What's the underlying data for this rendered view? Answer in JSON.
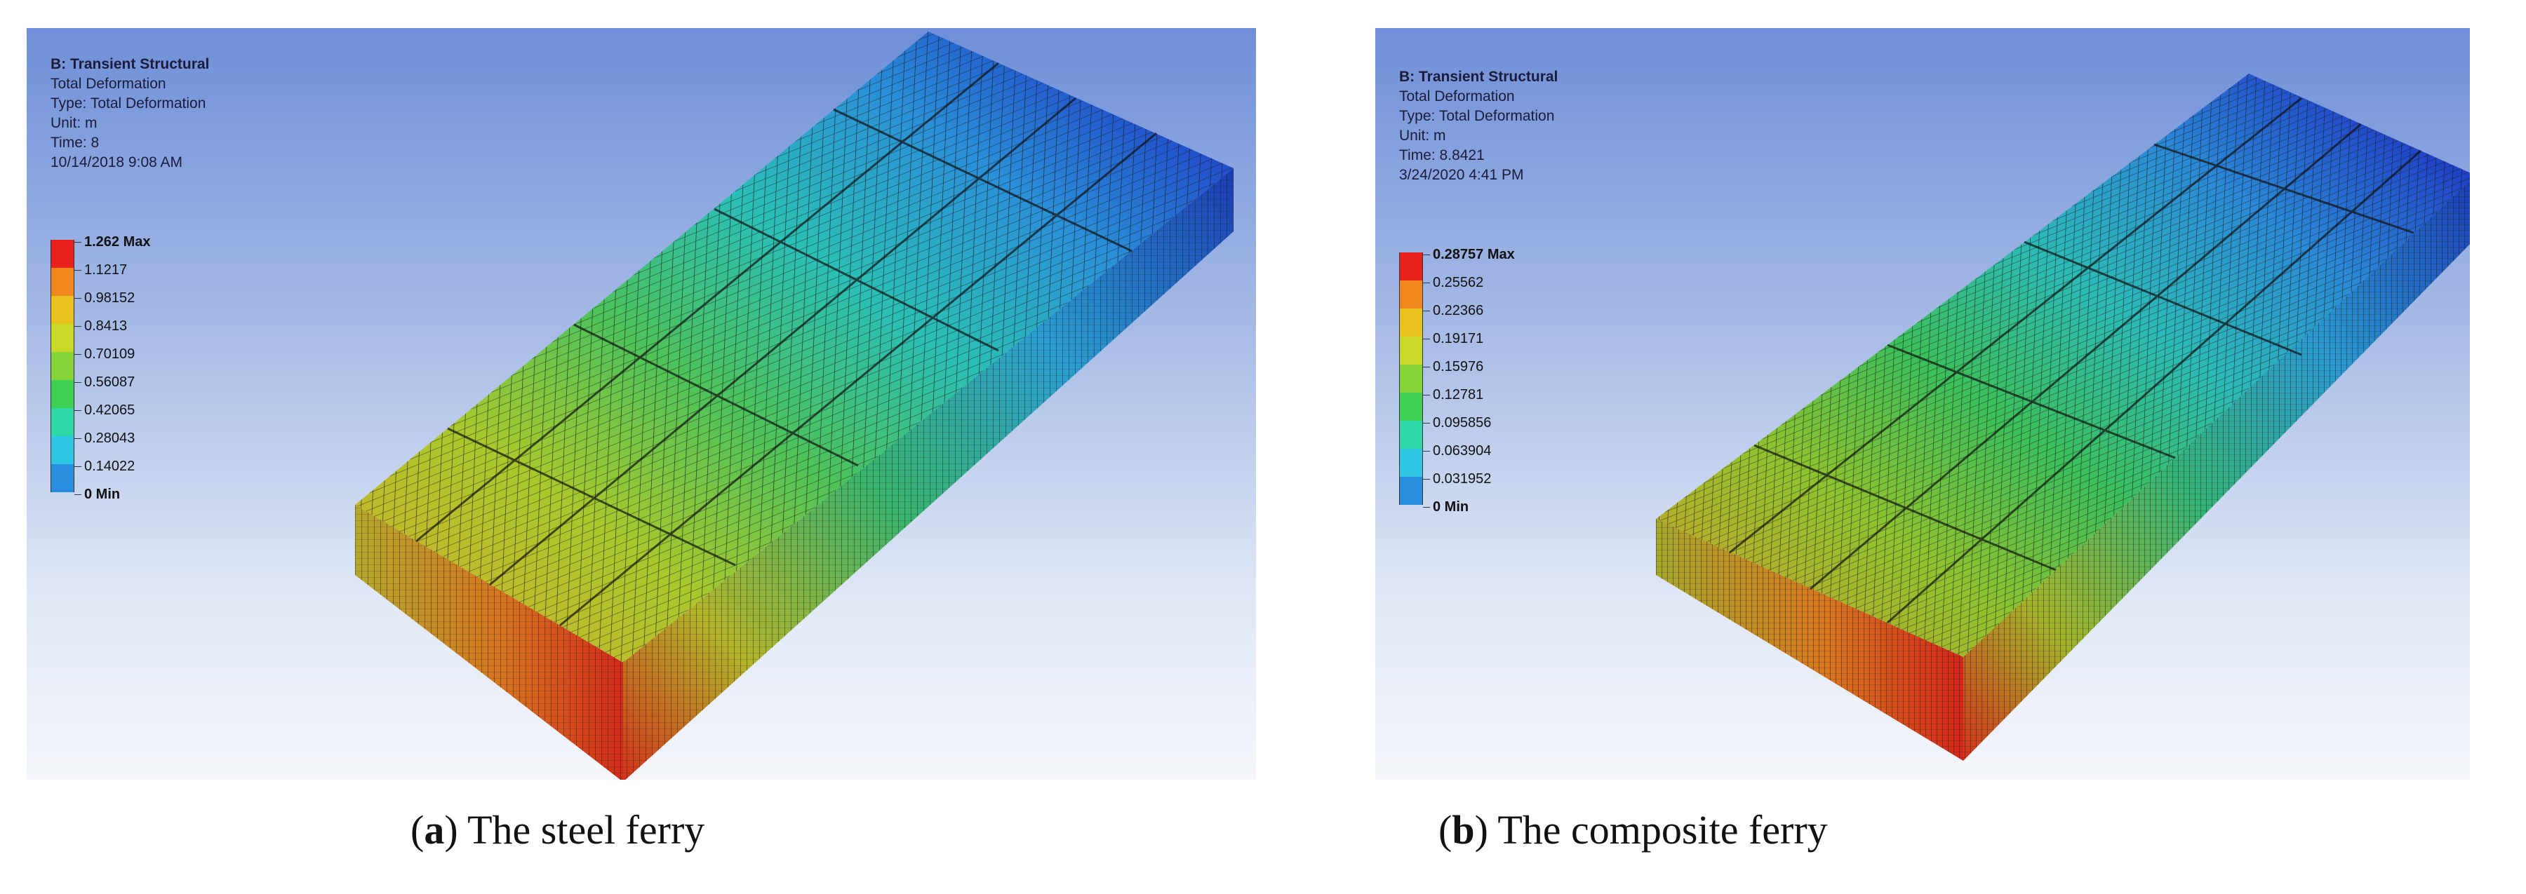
{
  "panels": [
    {
      "id": "a",
      "info": {
        "title": "B: Transient Structural",
        "result": "Total Deformation",
        "type": "Type: Total Deformation",
        "unit": "Unit: m",
        "time": "Time: 8",
        "date": "10/14/2018 9:08 AM"
      },
      "legend": [
        "1.262 Max",
        "1.1217",
        "0.98152",
        "0.8413",
        "0.70109",
        "0.56087",
        "0.42065",
        "0.28043",
        "0.14022",
        "0 Min"
      ],
      "caption": {
        "letter": "a",
        "text": "The steel ferry"
      }
    },
    {
      "id": "b",
      "info": {
        "title": "B: Transient Structural",
        "result": "Total Deformation",
        "type": "Type: Total Deformation",
        "unit": "Unit: m",
        "time": "Time: 8.8421",
        "date": "3/24/2020 4:41 PM"
      },
      "legend": [
        "0.28757 Max",
        "0.25562",
        "0.22366",
        "0.19171",
        "0.15976",
        "0.12781",
        "0.095856",
        "0.063904",
        "0.031952",
        "0 Min"
      ],
      "caption": {
        "letter": "b",
        "text": "The composite ferry"
      }
    }
  ],
  "legend_colors": [
    "#e8201b",
    "#f0881f",
    "#e8c21e",
    "#c8d92a",
    "#86d33a",
    "#3fcf54",
    "#2dd7a6",
    "#2ec6e3",
    "#2a8ee0",
    "#1f3fd6"
  ]
}
